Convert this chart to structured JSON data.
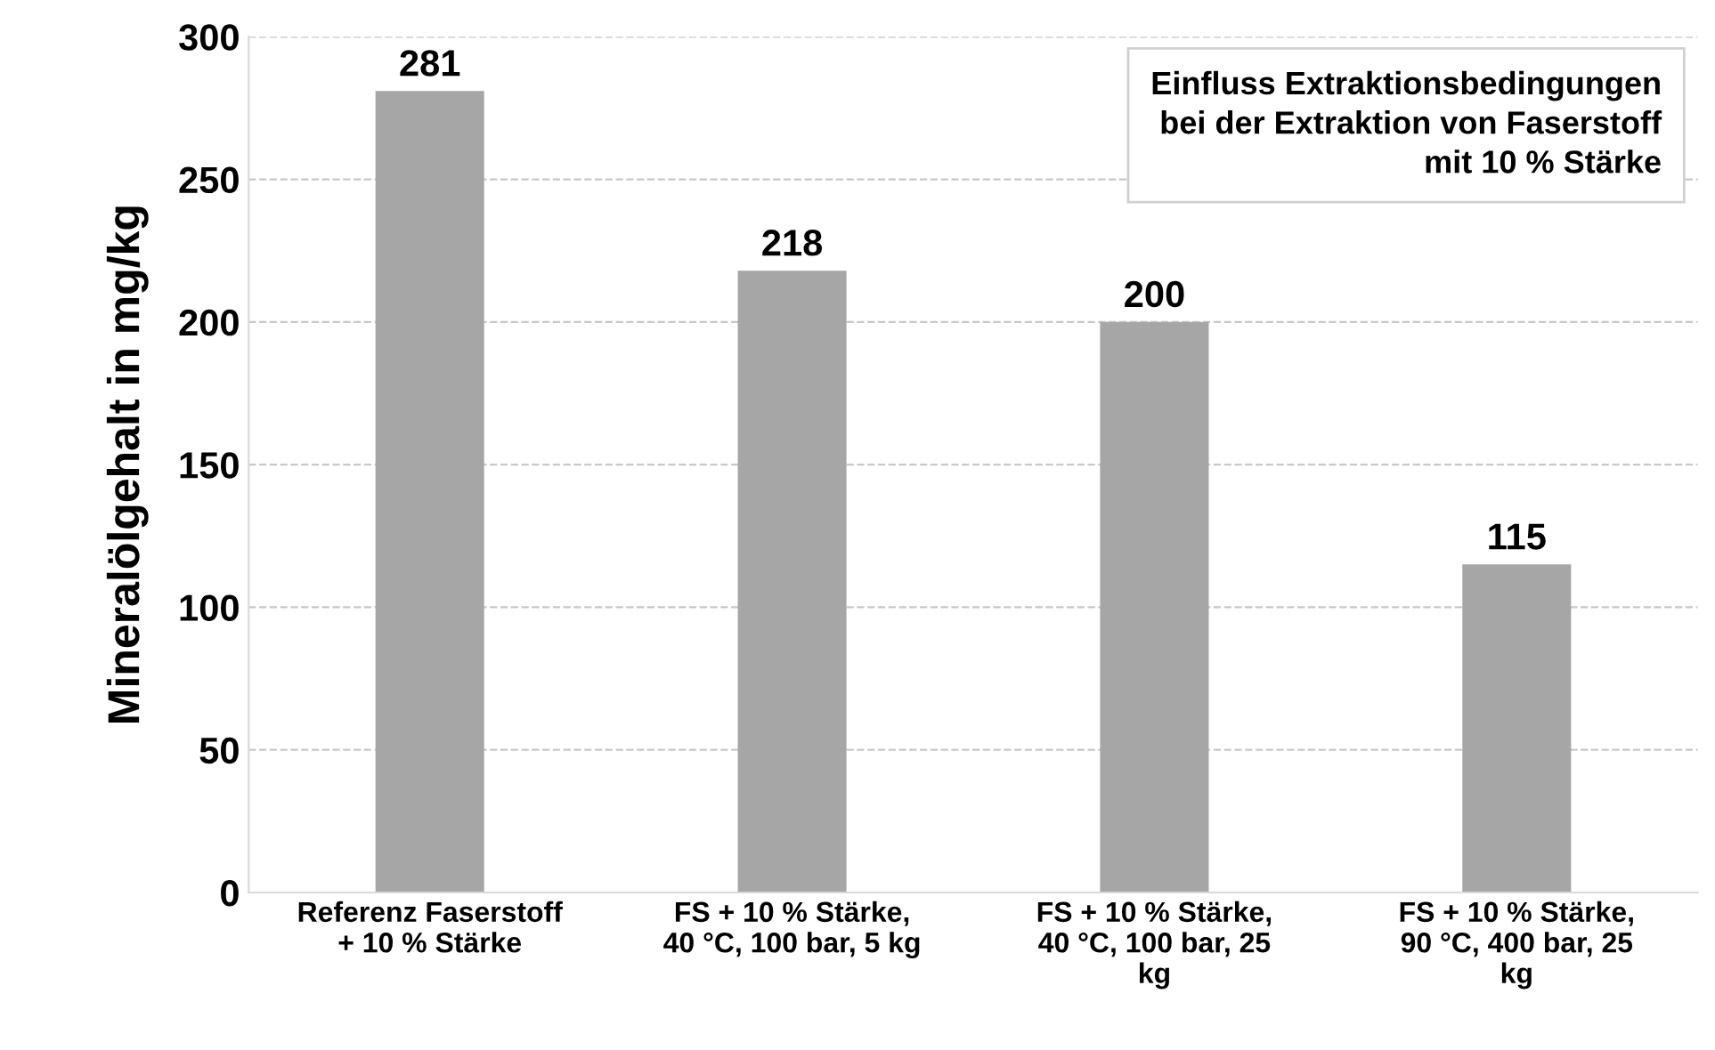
{
  "chart_data": {
    "type": "bar",
    "title": "Einfluss Extraktionsbedingungen\nbei der Extraktion von Faserstoff\nmit 10 % Stärke",
    "ylabel": "Mineralölgehalt in mg/kg",
    "categories": [
      "Referenz Faserstoff\n+ 10 % Stärke",
      "FS + 10 % Stärke,\n40 °C, 100 bar, 5 kg",
      "FS + 10 % Stärke,\n40 °C, 100 bar, 25\nkg",
      "FS + 10 % Stärke,\n90 °C, 400 bar, 25\nkg"
    ],
    "values": [
      281,
      218,
      200,
      115
    ],
    "color": "#a6a6a6",
    "data_labels": true,
    "ylim": [
      0,
      300
    ],
    "yticks": [
      0,
      50,
      100,
      150,
      200,
      250,
      300
    ],
    "grid": "y",
    "legend": false
  }
}
